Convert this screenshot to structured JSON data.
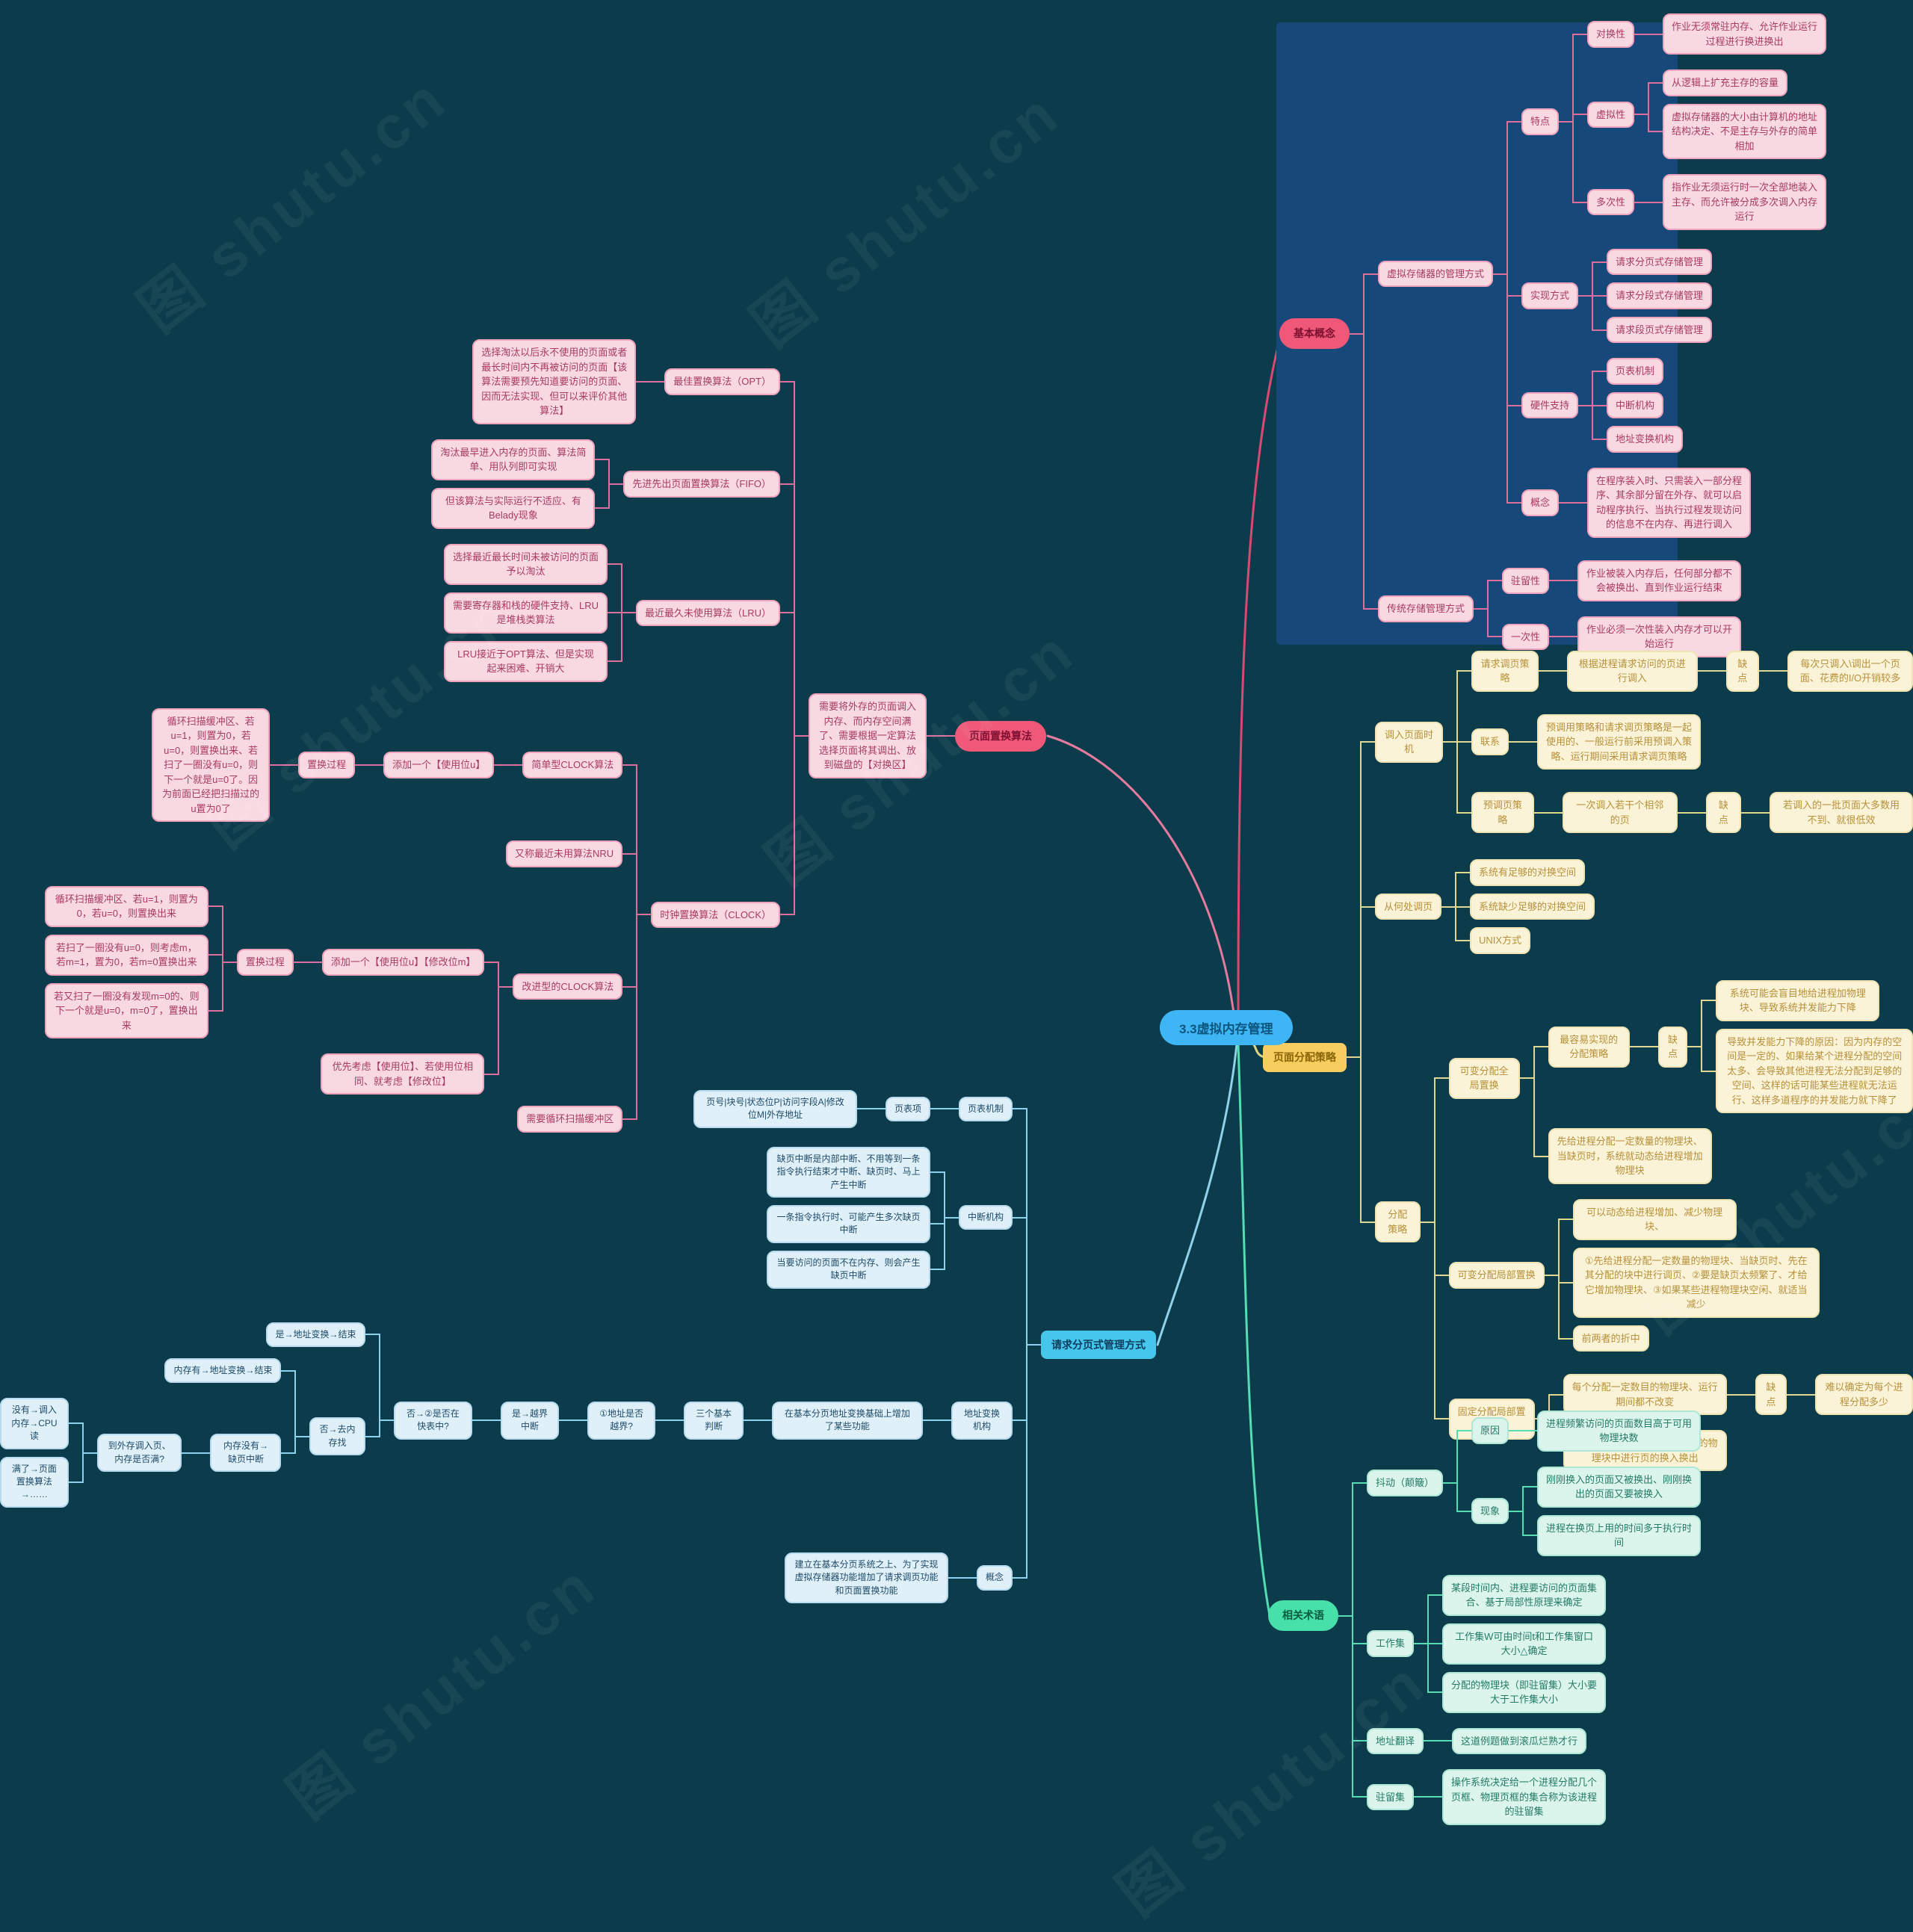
{
  "center": {
    "label": "3.3虚拟内存管理"
  },
  "watermark": {
    "text": "图 shutu.cn"
  },
  "colors": {
    "background": "#0c3c4c",
    "highlight_panel": "#16497a",
    "center_node": "#3eb5f4",
    "pink_branch": "#ef5878",
    "yellow_branch": "#f7cd5f",
    "blue_branch": "#46c6ec",
    "mint_branch": "#47e0a9"
  },
  "branches": {
    "basic_concepts": {
      "label": "基本概念",
      "tree": {
        "t": "基本概念",
        "s": "pill",
        "n": "branch-root-basic-concepts",
        "k": [
          {
            "t": "虚拟存储器的管理方式",
            "k": [
              {
                "t": "特点",
                "k": [
                  {
                    "t": "对换性",
                    "k": [
                      {
                        "t": "作业无须常驻内存、允许作业运行过程进行换进换出"
                      }
                    ]
                  },
                  {
                    "t": "虚拟性",
                    "k": [
                      {
                        "t": "从逻辑上扩充主存的容量"
                      },
                      {
                        "t": "虚拟存储器的大小由计算机的地址结构决定、不是主存与外存的简单相加"
                      }
                    ]
                  },
                  {
                    "t": "多次性",
                    "k": [
                      {
                        "t": "指作业无须运行时一次全部地装入主存、而允许被分成多次调入内存运行"
                      }
                    ]
                  }
                ]
              },
              {
                "t": "实现方式",
                "k": [
                  {
                    "t": "请求分页式存储管理"
                  },
                  {
                    "t": "请求分段式存储管理"
                  },
                  {
                    "t": "请求段页式存储管理"
                  }
                ]
              },
              {
                "t": "硬件支持",
                "k": [
                  {
                    "t": "页表机制"
                  },
                  {
                    "t": "中断机构"
                  },
                  {
                    "t": "地址变换机构"
                  }
                ]
              },
              {
                "t": "概念",
                "k": [
                  {
                    "t": "在程序装入时、只需装入一部分程序、其余部分留在外存、就可以启动程序执行、当执行过程发现访问的信息不在内存、再进行调入"
                  }
                ]
              }
            ]
          },
          {
            "t": "传统存储管理方式",
            "k": [
              {
                "t": "驻留性",
                "k": [
                  {
                    "t": "作业被装入内存后，任何部分都不会被换出、直到作业运行结束"
                  }
                ]
              },
              {
                "t": "一次性",
                "k": [
                  {
                    "t": "作业必须一次性装入内存才可以开始运行"
                  }
                ]
              }
            ]
          }
        ]
      }
    },
    "page_replacement": {
      "label": "页面置换算法",
      "tree": {
        "t": "页面置换算法",
        "s": "pill",
        "n": "branch-root-page-replacement",
        "k": [
          {
            "t": "需要将外存的页面调入内存、而内存空间满了、需要根据一定算法选择页面将其调出、放到磁盘的【对换区】",
            "s": "narrow",
            "k": [
              {
                "t": "最佳置换算法（OPT）",
                "k": [
                  {
                    "t": "选择淘汰以后永不使用的页面或者最长时间内不再被访问的页面【该算法需要预先知道要访问的页面、因而无法实现、但可以来评价其他算法】"
                  }
                ]
              },
              {
                "t": "先进先出页面置换算法（FIFO）",
                "k": [
                  {
                    "t": "淘汰最早进入内存的页面、算法简单、用队列即可实现"
                  },
                  {
                    "t": "但该算法与实际运行不适应、有Belady现象"
                  }
                ]
              },
              {
                "t": "最近最久未使用算法（LRU）",
                "k": [
                  {
                    "t": "选择最近最长时间未被访问的页面予以淘汰"
                  },
                  {
                    "t": "需要寄存器和栈的硬件支持、LRU是堆栈类算法"
                  },
                  {
                    "t": "LRU接近于OPT算法、但是实现起来困难、开销大"
                  }
                ]
              },
              {
                "t": "时钟置换算法（CLOCK）",
                "k": [
                  {
                    "t": "简单型CLOCK算法",
                    "k": [
                      {
                        "t": "添加一个【使用位u】",
                        "k": [
                          {
                            "t": "置换过程",
                            "k": [
                              {
                                "t": "循环扫描缓冲区、若u=1，则置为0，若u=0，则置换出来、若扫了一圈没有u=0，则下一个就是u=0了。因为前面已经把扫描过的u置为0了",
                                "s": "narrow"
                              }
                            ]
                          }
                        ]
                      }
                    ]
                  },
                  {
                    "t": "又称最近未用算法NRU"
                  },
                  {
                    "t": "改进型的CLOCK算法",
                    "k": [
                      {
                        "t": "添加一个【使用位u】【修改位m】",
                        "k": [
                          {
                            "t": "置换过程",
                            "k": [
                              {
                                "t": "循环扫描缓冲区、若u=1，则置为0，若u=0，则置换出来"
                              },
                              {
                                "t": "若扫了一圈没有u=0，则考虑m，若m=1，置为0，若m=0置换出来"
                              },
                              {
                                "t": "若又扫了一圈没有发现m=0的、则下一个就是u=0，m=0了，置换出来"
                              }
                            ]
                          }
                        ]
                      },
                      {
                        "t": "优先考虑【使用位】、若使用位相同、就考虑【修改位】"
                      }
                    ]
                  },
                  {
                    "t": "需要循环扫描缓冲区"
                  }
                ]
              }
            ]
          }
        ]
      }
    },
    "allocation": {
      "label": "页面分配策略",
      "tree": {
        "t": "页面分配策略",
        "s": "root",
        "n": "branch-root-page-allocation",
        "k": [
          {
            "t": "调入页面时机",
            "k": [
              {
                "t": "请求调页策略",
                "k": [
                  {
                    "t": "根据进程请求访问的页进行调入",
                    "k": [
                      {
                        "t": "缺点",
                        "k": [
                          {
                            "t": "每次只调入\\调出一个页面、花费的I/O开销较多"
                          }
                        ]
                      }
                    ]
                  }
                ]
              },
              {
                "t": "联系",
                "k": [
                  {
                    "t": "预调用策略和请求调页策略是一起使用的、一般运行前采用预调入策略、运行期间采用请求调页策略"
                  }
                ]
              },
              {
                "t": "预调页策略",
                "k": [
                  {
                    "t": "一次调入若干个相邻的页",
                    "k": [
                      {
                        "t": "缺点",
                        "k": [
                          {
                            "t": "若调入的一批页面大多数用不到、就很低效"
                          }
                        ]
                      }
                    ]
                  }
                ]
              }
            ]
          },
          {
            "t": "从何处调页",
            "k": [
              {
                "t": "系统有足够的对换空间"
              },
              {
                "t": "系统缺少足够的对换空间"
              },
              {
                "t": "UNIX方式"
              }
            ]
          },
          {
            "t": "分配策略",
            "k": [
              {
                "t": "可变分配全局置换",
                "k": [
                  {
                    "t": "最容易实现的分配策略",
                    "k": [
                      {
                        "t": "缺点",
                        "k": [
                          {
                            "t": "系统可能会盲目地给进程加物理块、导致系统并发能力下降"
                          },
                          {
                            "t": "导致并发能力下降的原因：因为内存的空间是一定的、如果给某个进程分配的空间太多、会导致其他进程无法分配到足够的空间、这样的话可能某些进程就无法运行、这样多道程序的并发能力就下降了",
                            "s": "xwide"
                          }
                        ]
                      }
                    ]
                  },
                  {
                    "t": "先给进程分配一定数量的物理块、当缺页时，系统就动态给进程增加物理块"
                  }
                ]
              },
              {
                "t": "可变分配局部置换",
                "k": [
                  {
                    "t": "可以动态给进程增加、减少物理块、"
                  },
                  {
                    "t": "①先给进程分配一定数量的物理块、当缺页时、先在其分配的块中进行调页、②要是缺页太频繁了、才给它增加物理块、③如果某些进程物理块空闲、就适当减少",
                    "s": "wide"
                  },
                  {
                    "t": "前两者的折中"
                  }
                ]
              },
              {
                "t": "固定分配局部置换",
                "k": [
                  {
                    "t": "每个分配一定数目的物理块、运行期间都不改变",
                    "k": [
                      {
                        "t": "缺点",
                        "k": [
                          {
                            "t": "难以确定为每个进程分配多少"
                          }
                        ]
                      }
                    ]
                  },
                  {
                    "t": "发生缺页就只能在该进程分配的物理块中进行页的换入换出"
                  }
                ]
              }
            ]
          }
        ]
      }
    },
    "request_paging": {
      "label": "请求分页式管理方式",
      "tree": {
        "t": "请求分页式管理方式",
        "s": "root",
        "n": "branch-root-request-paging",
        "k": [
          {
            "t": "页表机制",
            "k": [
              {
                "t": "页表项",
                "k": [
                  {
                    "t": "页号|块号|状态位P|访问字段A|修改位M|外存地址"
                  }
                ]
              }
            ]
          },
          {
            "t": "中断机构",
            "k": [
              {
                "t": "缺页中断是内部中断、不用等到一条指令执行结束才中断、缺页时、马上产生中断"
              },
              {
                "t": "一条指令执行时、可能产生多次缺页中断"
              },
              {
                "t": "当要访问的页面不在内存、则会产生缺页中断"
              }
            ]
          },
          {
            "t": "地址变换机构",
            "k": [
              {
                "t": "在基本分页地址变换基础上增加了某些功能",
                "k": [
                  {
                    "t": "三个基本判断",
                    "k": [
                      {
                        "t": "①地址是否越界?",
                        "k": [
                          {
                            "t": "是→越界中断",
                            "k": [
                              {
                                "t": "否→②是否在快表中?",
                                "k": [
                                  {
                                    "t": "是→地址变换→结束"
                                  },
                                  {
                                    "t": "否→去内存找",
                                    "k": [
                                      {
                                        "t": "内存有→地址变换→结束"
                                      },
                                      {
                                        "t": "内存没有→缺页中断",
                                        "k": [
                                          {
                                            "t": "到外存调入页、内存是否满?",
                                            "k": [
                                              {
                                                "t": "没有→调入内存→CPU读"
                                              },
                                              {
                                                "t": "满了→页面置换算法→……"
                                              }
                                            ]
                                          }
                                        ]
                                      }
                                    ]
                                  }
                                ]
                              }
                            ]
                          }
                        ]
                      }
                    ]
                  }
                ]
              }
            ]
          },
          {
            "t": "概念",
            "k": [
              {
                "t": "建立在基本分页系统之上、为了实现虚拟存储器功能增加了请求调页功能和页面置换功能"
              }
            ]
          }
        ]
      }
    },
    "terms": {
      "label": "相关术语",
      "tree": {
        "t": "相关术语",
        "s": "pill",
        "n": "branch-root-related-terms",
        "k": [
          {
            "t": "抖动（颠簸）",
            "k": [
              {
                "t": "原因",
                "k": [
                  {
                    "t": "进程频繁访问的页面数目高于可用物理块数"
                  }
                ]
              },
              {
                "t": "现象",
                "k": [
                  {
                    "t": "刚刚换入的页面又被换出、刚刚换出的页面又要被换入"
                  },
                  {
                    "t": "进程在换页上用的时间多于执行时间"
                  }
                ]
              }
            ]
          },
          {
            "t": "工作集",
            "k": [
              {
                "t": "某段时间内、进程要访问的页面集合、基于局部性原理来确定"
              },
              {
                "t": "工作集W可由时间t和工作集窗口大小△确定"
              },
              {
                "t": "分配的物理块（即驻留集）大小要大于工作集大小"
              }
            ]
          },
          {
            "t": "地址翻译",
            "k": [
              {
                "t": "这道例题做到滚瓜烂熟才行"
              }
            ]
          },
          {
            "t": "驻留集",
            "k": [
              {
                "t": "操作系统决定给一个进程分配几个页框、物理页框的集合称为该进程的驻留集"
              }
            ]
          }
        ]
      }
    }
  }
}
